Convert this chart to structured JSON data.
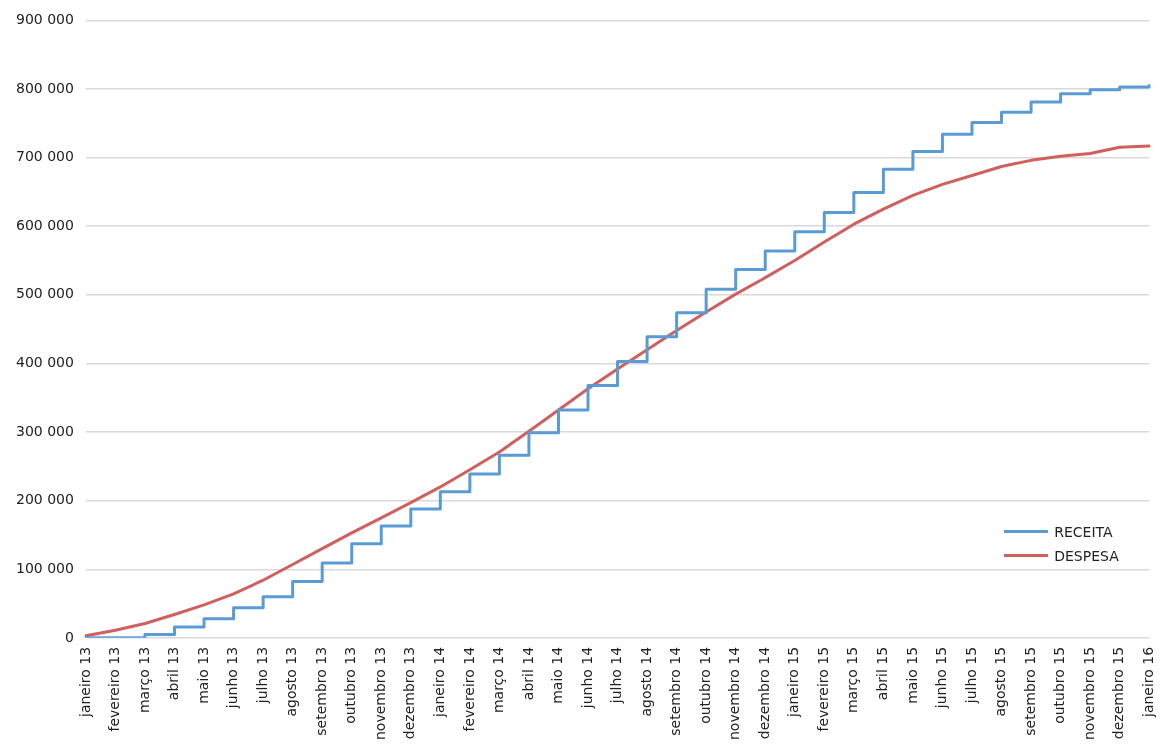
{
  "chart_data": {
    "type": "line",
    "categories": [
      "janeiro 13",
      "fevereiro 13",
      "março 13",
      "abril 13",
      "maio 13",
      "junho 13",
      "julho 13",
      "agosto 13",
      "setembro 13",
      "outubro 13",
      "novembro 13",
      "dezembro 13",
      "janeiro 14",
      "fevereiro 14",
      "março 14",
      "abril 14",
      "maio 14",
      "junho 14",
      "julho 14",
      "agosto 14",
      "setembro 14",
      "outubro 14",
      "novembro 14",
      "dezembro 14",
      "janeiro 15",
      "fevereiro 15",
      "março 15",
      "abril 15",
      "maio 15",
      "junho 15",
      "julho 15",
      "agosto 15",
      "setembro 15",
      "outubro 15",
      "novembro 15",
      "dezembro 15",
      "janeiro 16"
    ],
    "series": [
      {
        "name": "RECEITA",
        "type": "step",
        "color": "#5b9bd5",
        "values": [
          0,
          0,
          5000,
          16000,
          28000,
          44000,
          60000,
          82000,
          109000,
          137000,
          163000,
          188000,
          213000,
          239000,
          266000,
          299000,
          332000,
          368000,
          403000,
          439000,
          474000,
          508000,
          537000,
          564000,
          592000,
          620000,
          649000,
          683000,
          709000,
          734000,
          751000,
          766000,
          781000,
          793000,
          799000,
          803000,
          805000
        ]
      },
      {
        "name": "DESPESA",
        "type": "line",
        "color": "#d0605e",
        "values": [
          3000,
          11000,
          21000,
          34000,
          48000,
          64000,
          84000,
          107000,
          130000,
          153000,
          175000,
          197000,
          220000,
          245000,
          271000,
          301000,
          332000,
          363000,
          392000,
          420000,
          448000,
          475000,
          501000,
          525000,
          550000,
          577000,
          603000,
          625000,
          645000,
          661000,
          674000,
          687000,
          696000,
          702000,
          706000,
          715000,
          717000
        ]
      }
    ],
    "ylim": [
      0,
      900000
    ],
    "yticks": [
      0,
      {
        "value": 100000,
        "label": "100 000"
      },
      {
        "value": 200000,
        "label": "200 000"
      },
      {
        "value": 300000,
        "label": "300 000"
      },
      {
        "value": 400000,
        "label": "400 000"
      },
      {
        "value": 500000,
        "label": "500 000"
      },
      {
        "value": 600000,
        "label": "600 000"
      },
      {
        "value": 700000,
        "label": "700 000"
      },
      {
        "value": 800000,
        "label": "800 000"
      },
      {
        "value": 900000,
        "label": "900 000"
      }
    ],
    "grid": "y",
    "legend": "bottom right",
    "marker": "none",
    "line_style": "solid"
  }
}
